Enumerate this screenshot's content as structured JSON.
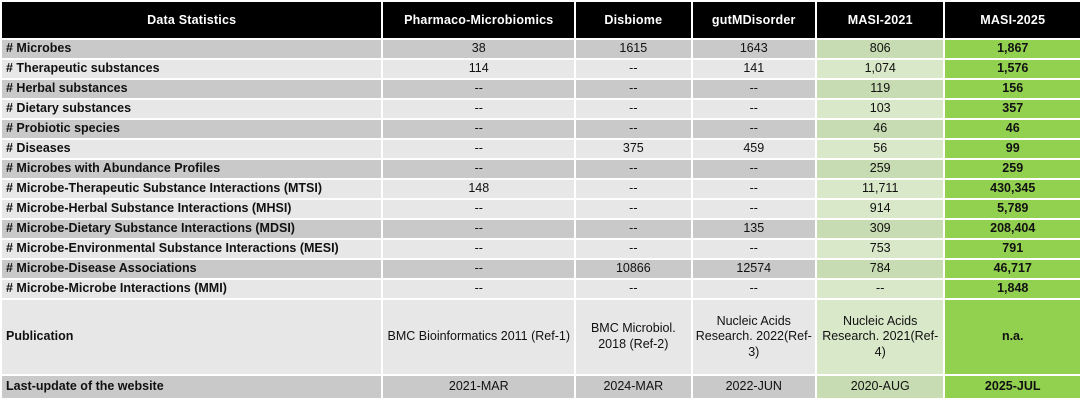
{
  "table": {
    "header": {
      "label_column": "Data Statistics",
      "columns": [
        "Pharmaco-Microbiomics",
        "Disbiome",
        "gutMDisorder",
        "MASI-2021",
        "MASI-2025"
      ]
    },
    "rows": [
      {
        "label": "# Microbes",
        "values": [
          "38",
          "1615",
          "1643",
          "806",
          "1,867"
        ],
        "shade": "dark"
      },
      {
        "label": "# Therapeutic substances",
        "values": [
          "114",
          "--",
          "141",
          "1,074",
          "1,576"
        ],
        "shade": "light"
      },
      {
        "label": "# Herbal substances",
        "values": [
          "--",
          "--",
          "--",
          "119",
          "156"
        ],
        "shade": "dark"
      },
      {
        "label": "# Dietary substances",
        "values": [
          "--",
          "--",
          "--",
          "103",
          "357"
        ],
        "shade": "light"
      },
      {
        "label": "# Probiotic species",
        "values": [
          "--",
          "--",
          "--",
          "46",
          "46"
        ],
        "shade": "dark"
      },
      {
        "label": "# Diseases",
        "values": [
          "--",
          "375",
          "459",
          "56",
          "99"
        ],
        "shade": "light"
      },
      {
        "label": "# Microbes with Abundance Profiles",
        "values": [
          "--",
          "--",
          "--",
          "259",
          "259"
        ],
        "shade": "dark"
      },
      {
        "label": "# Microbe-Therapeutic Substance Interactions (MTSI)",
        "values": [
          "148",
          "--",
          "--",
          "11,711",
          "430,345"
        ],
        "shade": "light"
      },
      {
        "label": "# Microbe-Herbal Substance Interactions (MHSI)",
        "values": [
          "--",
          "--",
          "--",
          "914",
          "5,789"
        ],
        "shade": "light"
      },
      {
        "label": "# Microbe-Dietary Substance Interactions (MDSI)",
        "values": [
          "--",
          "--",
          "135",
          "309",
          "208,404"
        ],
        "shade": "dark"
      },
      {
        "label": "# Microbe-Environmental Substance Interactions (MESI)",
        "values": [
          "--",
          "--",
          "--",
          "753",
          "791"
        ],
        "shade": "light"
      },
      {
        "label": "# Microbe-Disease Associations",
        "values": [
          "--",
          "10866",
          "12574",
          "784",
          "46,717"
        ],
        "shade": "dark"
      },
      {
        "label": "# Microbe-Microbe Interactions (MMI)",
        "values": [
          "--",
          "--",
          "--",
          "--",
          "1,848"
        ],
        "shade": "light"
      },
      {
        "label": "Publication",
        "values": [
          "BMC Bioinformatics 2011 (Ref-1)",
          "BMC Microbiol. 2018 (Ref-2)",
          "Nucleic Acids Research. 2022(Ref-3)",
          "Nucleic Acids Research. 2021(Ref-4)",
          "n.a."
        ],
        "shade": "light",
        "tall": true
      },
      {
        "label": "Last-update of the website",
        "values": [
          "2021-MAR",
          "2024-MAR",
          "2022-JUN",
          "2020-AUG",
          "2025-JUL"
        ],
        "shade": "dark",
        "bottom": true
      }
    ]
  },
  "colors": {
    "header_bg": "#000000",
    "header_text": "#ffffff",
    "row_dark_gray": "#c9c9c9",
    "row_light_gray": "#e7e7e7",
    "masi2021_dark_green": "#c7dcb2",
    "masi2021_light_green": "#d9e8c9",
    "masi2025_green": "#92d050"
  },
  "chart_data": {
    "type": "table",
    "title": "Data Statistics",
    "columns": [
      "Data Statistics",
      "Pharmaco-Microbiomics",
      "Disbiome",
      "gutMDisorder",
      "MASI-2021",
      "MASI-2025"
    ],
    "rows": [
      [
        "# Microbes",
        "38",
        "1615",
        "1643",
        "806",
        "1,867"
      ],
      [
        "# Therapeutic substances",
        "114",
        "--",
        "141",
        "1,074",
        "1,576"
      ],
      [
        "# Herbal substances",
        "--",
        "--",
        "--",
        "119",
        "156"
      ],
      [
        "# Dietary substances",
        "--",
        "--",
        "--",
        "103",
        "357"
      ],
      [
        "# Probiotic species",
        "--",
        "--",
        "--",
        "46",
        "46"
      ],
      [
        "# Diseases",
        "--",
        "375",
        "459",
        "56",
        "99"
      ],
      [
        "# Microbes with Abundance Profiles",
        "--",
        "--",
        "--",
        "259",
        "259"
      ],
      [
        "# Microbe-Therapeutic Substance Interactions (MTSI)",
        "148",
        "--",
        "--",
        "11,711",
        "430,345"
      ],
      [
        "# Microbe-Herbal Substance Interactions (MHSI)",
        "--",
        "--",
        "--",
        "914",
        "5,789"
      ],
      [
        "# Microbe-Dietary Substance Interactions (MDSI)",
        "--",
        "--",
        "135",
        "309",
        "208,404"
      ],
      [
        "# Microbe-Environmental Substance Interactions (MESI)",
        "--",
        "--",
        "--",
        "753",
        "791"
      ],
      [
        "# Microbe-Disease Associations",
        "--",
        "10866",
        "12574",
        "784",
        "46,717"
      ],
      [
        "# Microbe-Microbe Interactions (MMI)",
        "--",
        "--",
        "--",
        "--",
        "1,848"
      ],
      [
        "Publication",
        "BMC Bioinformatics 2011 (Ref-1)",
        "BMC Microbiol. 2018 (Ref-2)",
        "Nucleic Acids Research. 2022(Ref-3)",
        "Nucleic Acids Research. 2021(Ref-4)",
        "n.a."
      ],
      [
        "Last-update of the website",
        "2021-MAR",
        "2024-MAR",
        "2022-JUN",
        "2020-AUG",
        "2025-JUL"
      ]
    ],
    "layout_hints": {
      "header_style": "black background, white bold text",
      "masi_2021_column_highlight": "light green",
      "masi_2025_column_highlight": "bright green, bold values",
      "body_striping": "alternating gray rows"
    }
  }
}
